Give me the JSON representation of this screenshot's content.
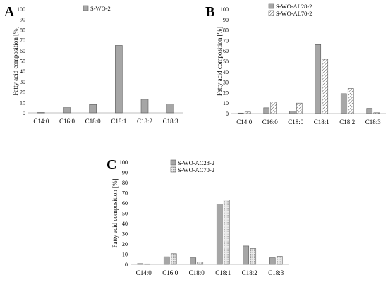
{
  "chart_data": [
    {
      "panel_label": "A",
      "type": "bar",
      "categories": [
        "C14:0",
        "C16:0",
        "C18:0",
        "C18:1",
        "C18:2",
        "C18:3"
      ],
      "series": [
        {
          "name": "S-WO-2",
          "values": [
            0.3,
            5,
            8,
            65,
            13,
            8.5
          ],
          "pattern": "solid"
        }
      ],
      "ylabel": "Fatty acid composition [%]",
      "ylim": [
        0,
        100
      ],
      "yticks": [
        0,
        10,
        20,
        30,
        40,
        50,
        60,
        70,
        80,
        90,
        100
      ],
      "legend": "top-left"
    },
    {
      "panel_label": "B",
      "type": "bar",
      "categories": [
        "C14:0",
        "C16:0",
        "C18:0",
        "C18:1",
        "C18:2",
        "C18:3"
      ],
      "series": [
        {
          "name": "S-WO-AL28-2",
          "values": [
            0.5,
            5.5,
            2.5,
            66,
            19,
            5
          ],
          "pattern": "solid"
        },
        {
          "name": "S-WO-AL70-2",
          "values": [
            1.5,
            11,
            10,
            52,
            24,
            0.8
          ],
          "pattern": "hatch"
        }
      ],
      "ylabel": "Fatty acid composition [%]",
      "ylim": [
        0,
        100
      ],
      "yticks": [
        0,
        10,
        20,
        30,
        40,
        50,
        60,
        70,
        80,
        90,
        100
      ],
      "legend": "top-left"
    },
    {
      "panel_label": "C",
      "type": "bar",
      "categories": [
        "C14:0",
        "C16:0",
        "C18:0",
        "C18:1",
        "C18:2",
        "C18:3"
      ],
      "series": [
        {
          "name": "S-WO-AC28-2",
          "values": [
            0.8,
            7.5,
            6.5,
            59,
            18,
            6.5
          ],
          "pattern": "solid"
        },
        {
          "name": "S-WO-AC70-2",
          "values": [
            0.5,
            10.5,
            2.5,
            63,
            15.5,
            8
          ],
          "pattern": "dots"
        }
      ],
      "ylabel": "Fatty acid composition [%]",
      "ylim": [
        0,
        100
      ],
      "yticks": [
        0,
        10,
        20,
        30,
        40,
        50,
        60,
        70,
        80,
        90,
        100
      ],
      "legend": "top-left"
    }
  ]
}
